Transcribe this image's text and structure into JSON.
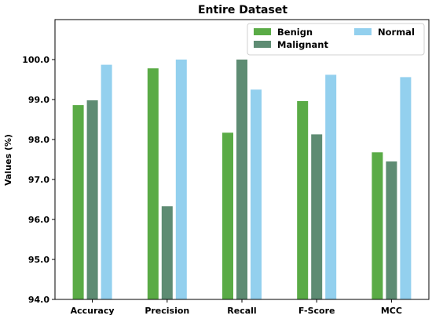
{
  "chart_data": {
    "type": "bar",
    "title": "Entire Dataset",
    "xlabel": "",
    "ylabel": "Values (%)",
    "categories": [
      "Accuracy",
      "Precision",
      "Recall",
      "F-Score",
      "MCC"
    ],
    "series": [
      {
        "name": "Benign",
        "color": "#5aab46",
        "values": [
          98.86,
          99.78,
          98.17,
          98.96,
          97.68
        ]
      },
      {
        "name": "Malignant",
        "color": "#5e8c73",
        "values": [
          98.98,
          96.33,
          100.0,
          98.13,
          97.45
        ]
      },
      {
        "name": "Normal",
        "color": "#93d0ee",
        "values": [
          99.87,
          100.0,
          99.25,
          99.62,
          99.56
        ]
      }
    ],
    "ylim": [
      94.0,
      101.0
    ],
    "yticks": [
      "94.0",
      "95.0",
      "96.0",
      "97.0",
      "98.0",
      "99.0",
      "100.0"
    ],
    "grid": false,
    "legend": {
      "placement": "top-right",
      "columns": 2
    }
  }
}
